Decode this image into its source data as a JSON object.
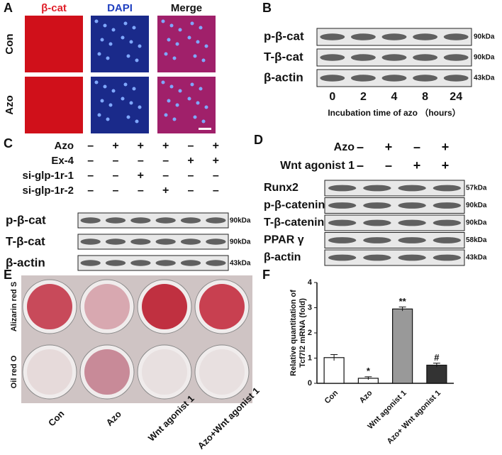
{
  "panels": {
    "A": {
      "letter": "A",
      "columns": [
        "β-cat",
        "DAPI",
        "Merge"
      ],
      "rows": [
        "Con",
        "Azo"
      ]
    },
    "B": {
      "letter": "B",
      "blots": [
        {
          "label": "p-β-cat",
          "size": "90kDa"
        },
        {
          "label": "T-β-cat",
          "size": "90kDa"
        },
        {
          "label": "β-actin",
          "size": "43kDa"
        }
      ],
      "lanes": [
        0,
        2,
        4,
        8,
        24
      ],
      "caption": "Incubation time of  azo （hours）"
    },
    "C": {
      "letter": "C",
      "treatments": [
        {
          "name": "Azo",
          "signs": [
            "–",
            "+",
            "+",
            "+",
            "–",
            "+"
          ]
        },
        {
          "name": "Ex-4",
          "signs": [
            "–",
            "–",
            "–",
            "–",
            "+",
            "+"
          ]
        },
        {
          "name": "si-glp-1r-1",
          "signs": [
            "–",
            "–",
            "+",
            "–",
            "–",
            "–"
          ]
        },
        {
          "name": "si-glp-1r-2",
          "signs": [
            "–",
            "–",
            "–",
            "+",
            "–",
            "–"
          ]
        }
      ],
      "blots": [
        {
          "label": "p-β-cat",
          "size": "90kDa"
        },
        {
          "label": "T-β-cat",
          "size": "90kDa"
        },
        {
          "label": "β-actin",
          "size": "43kDa"
        }
      ]
    },
    "D": {
      "letter": "D",
      "treatments": [
        {
          "name": "Azo",
          "signs": [
            "–",
            "+",
            "–",
            "+"
          ]
        },
        {
          "name": "Wnt agonist 1",
          "signs": [
            "–",
            "–",
            "+",
            "+"
          ]
        }
      ],
      "blots": [
        {
          "label": "Runx2",
          "size": "57kDa"
        },
        {
          "label": "p-β-catenin",
          "size": "90kDa"
        },
        {
          "label": "T-β-catenin",
          "size": "90kDa"
        },
        {
          "label": "PPAR γ",
          "size": "58kDa"
        },
        {
          "label": "β-actin",
          "size": "43kDa"
        }
      ]
    },
    "E": {
      "letter": "E",
      "rows": [
        "Alizarin red S",
        "Oil red O"
      ],
      "columns": [
        "Con",
        "Azo",
        "Wnt agonist 1",
        "Azo+Wnt agonist 1"
      ]
    }
  },
  "chart_data": {
    "type": "bar",
    "letter": "F",
    "y_label": [
      "Relative quantitation of",
      "Tcf7l2 mRNA (fold)"
    ],
    "categories": [
      "Con",
      "Azo",
      "Wnt agonist 1",
      "Azo+ Wnt agonist 1"
    ],
    "values": [
      1.02,
      0.2,
      2.95,
      0.72
    ],
    "errors": [
      0.12,
      0.06,
      0.08,
      0.08
    ],
    "value_annotations": [
      null,
      "*",
      "**",
      "#"
    ],
    "colors": [
      "#ffffff",
      "#ffffff",
      "#999999",
      "#333333"
    ],
    "ylim": [
      0,
      4
    ],
    "yticks": [
      0,
      1,
      2,
      3,
      4
    ]
  }
}
